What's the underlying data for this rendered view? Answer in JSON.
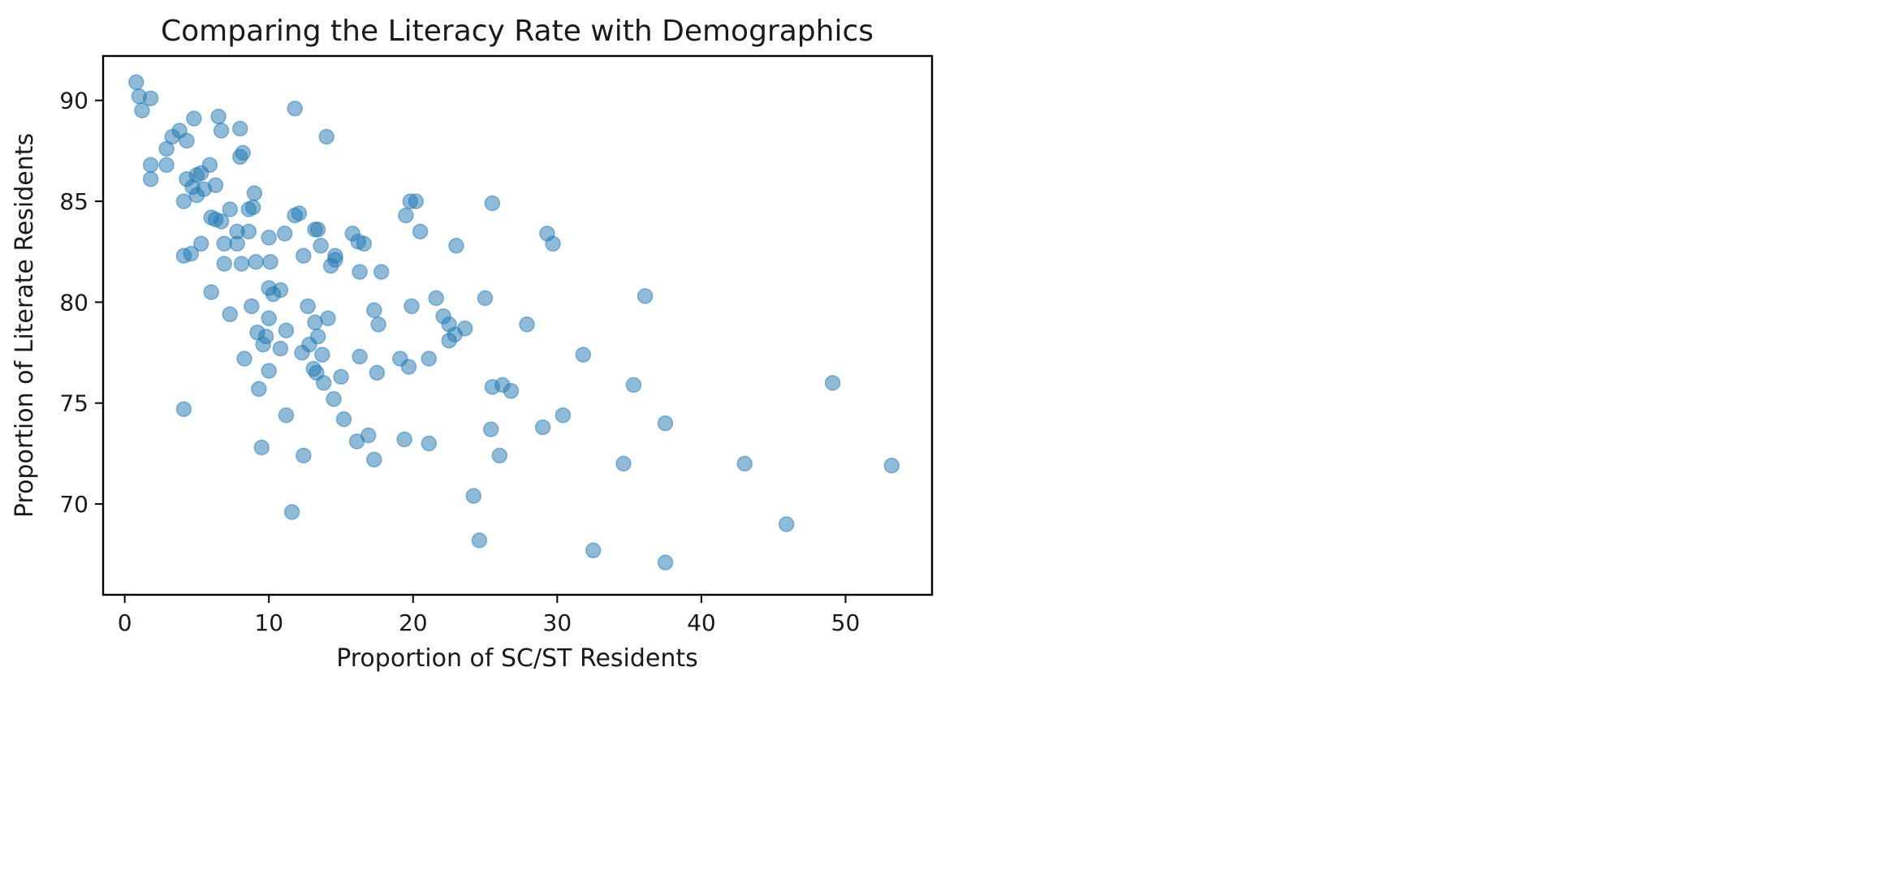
{
  "chart_data": {
    "type": "scatter",
    "title": "Comparing the Literacy Rate with Demographics",
    "xlabel": "Proportion of SC/ST Residents",
    "ylabel": "Proportion of Literate Residents",
    "xlim": [
      -1.5,
      56
    ],
    "ylim": [
      65.5,
      92.2
    ],
    "xticks": [
      0,
      10,
      20,
      30,
      40,
      50
    ],
    "yticks": [
      70,
      75,
      80,
      85,
      90
    ],
    "grid": false,
    "marker_color": "#1f77b4",
    "marker_alpha": 0.5,
    "points": [
      [
        0.8,
        90.9
      ],
      [
        1.0,
        90.2
      ],
      [
        1.8,
        90.1
      ],
      [
        1.2,
        89.5
      ],
      [
        4.8,
        89.1
      ],
      [
        6.5,
        89.2
      ],
      [
        6.7,
        88.5
      ],
      [
        8.0,
        88.6
      ],
      [
        11.8,
        89.6
      ],
      [
        14.0,
        88.2
      ],
      [
        3.8,
        88.5
      ],
      [
        3.3,
        88.2
      ],
      [
        4.3,
        88.0
      ],
      [
        2.9,
        87.6
      ],
      [
        8.2,
        87.4
      ],
      [
        8.0,
        87.2
      ],
      [
        1.8,
        86.8
      ],
      [
        2.9,
        86.8
      ],
      [
        5.9,
        86.8
      ],
      [
        5.3,
        86.4
      ],
      [
        5.0,
        86.3
      ],
      [
        1.8,
        86.1
      ],
      [
        4.3,
        86.1
      ],
      [
        4.7,
        85.7
      ],
      [
        5.5,
        85.6
      ],
      [
        6.3,
        85.8
      ],
      [
        9.0,
        85.4
      ],
      [
        5.0,
        85.3
      ],
      [
        4.1,
        85.0
      ],
      [
        19.8,
        85.0
      ],
      [
        20.2,
        85.0
      ],
      [
        25.5,
        84.9
      ],
      [
        7.3,
        84.6
      ],
      [
        8.6,
        84.6
      ],
      [
        8.9,
        84.7
      ],
      [
        11.8,
        84.3
      ],
      [
        12.1,
        84.4
      ],
      [
        19.5,
        84.3
      ],
      [
        6.0,
        84.2
      ],
      [
        6.3,
        84.1
      ],
      [
        6.7,
        84.0
      ],
      [
        7.8,
        83.5
      ],
      [
        8.6,
        83.5
      ],
      [
        10.0,
        83.2
      ],
      [
        11.1,
        83.4
      ],
      [
        13.2,
        83.6
      ],
      [
        13.4,
        83.6
      ],
      [
        15.8,
        83.4
      ],
      [
        20.5,
        83.5
      ],
      [
        29.3,
        83.4
      ],
      [
        5.3,
        82.9
      ],
      [
        6.9,
        82.9
      ],
      [
        7.8,
        82.9
      ],
      [
        13.6,
        82.8
      ],
      [
        16.2,
        83.0
      ],
      [
        16.6,
        82.9
      ],
      [
        23.0,
        82.8
      ],
      [
        29.7,
        82.9
      ],
      [
        4.1,
        82.3
      ],
      [
        4.6,
        82.4
      ],
      [
        9.1,
        82.0
      ],
      [
        10.1,
        82.0
      ],
      [
        12.4,
        82.3
      ],
      [
        14.6,
        82.3
      ],
      [
        14.6,
        82.1
      ],
      [
        14.3,
        81.8
      ],
      [
        6.9,
        81.9
      ],
      [
        8.1,
        81.9
      ],
      [
        16.3,
        81.5
      ],
      [
        17.8,
        81.5
      ],
      [
        6.0,
        80.5
      ],
      [
        10.0,
        80.7
      ],
      [
        10.3,
        80.4
      ],
      [
        10.8,
        80.6
      ],
      [
        21.6,
        80.2
      ],
      [
        25.0,
        80.2
      ],
      [
        36.1,
        80.3
      ],
      [
        8.8,
        79.8
      ],
      [
        12.7,
        79.8
      ],
      [
        17.3,
        79.6
      ],
      [
        19.9,
        79.8
      ],
      [
        7.3,
        79.4
      ],
      [
        10.0,
        79.2
      ],
      [
        13.2,
        79.0
      ],
      [
        14.1,
        79.2
      ],
      [
        17.6,
        78.9
      ],
      [
        22.1,
        79.3
      ],
      [
        22.5,
        78.9
      ],
      [
        27.9,
        78.9
      ],
      [
        9.2,
        78.5
      ],
      [
        9.8,
        78.3
      ],
      [
        11.2,
        78.6
      ],
      [
        13.4,
        78.3
      ],
      [
        22.9,
        78.4
      ],
      [
        22.5,
        78.1
      ],
      [
        23.6,
        78.7
      ],
      [
        9.6,
        77.9
      ],
      [
        10.8,
        77.7
      ],
      [
        12.8,
        77.9
      ],
      [
        12.3,
        77.5
      ],
      [
        13.7,
        77.4
      ],
      [
        16.3,
        77.3
      ],
      [
        19.1,
        77.2
      ],
      [
        21.1,
        77.2
      ],
      [
        8.3,
        77.2
      ],
      [
        31.8,
        77.4
      ],
      [
        10.0,
        76.6
      ],
      [
        13.1,
        76.7
      ],
      [
        13.3,
        76.5
      ],
      [
        15.0,
        76.3
      ],
      [
        17.5,
        76.5
      ],
      [
        19.7,
        76.8
      ],
      [
        13.8,
        76.0
      ],
      [
        9.3,
        75.7
      ],
      [
        25.5,
        75.8
      ],
      [
        26.2,
        75.9
      ],
      [
        26.8,
        75.6
      ],
      [
        35.3,
        75.9
      ],
      [
        49.1,
        76.0
      ],
      [
        14.5,
        75.2
      ],
      [
        4.1,
        74.7
      ],
      [
        11.2,
        74.4
      ],
      [
        15.2,
        74.2
      ],
      [
        30.4,
        74.4
      ],
      [
        25.4,
        73.7
      ],
      [
        29.0,
        73.8
      ],
      [
        37.5,
        74.0
      ],
      [
        16.9,
        73.4
      ],
      [
        16.1,
        73.1
      ],
      [
        19.4,
        73.2
      ],
      [
        21.1,
        73.0
      ],
      [
        9.5,
        72.8
      ],
      [
        12.4,
        72.4
      ],
      [
        17.3,
        72.2
      ],
      [
        26.0,
        72.4
      ],
      [
        34.6,
        72.0
      ],
      [
        43.0,
        72.0
      ],
      [
        53.2,
        71.9
      ],
      [
        24.2,
        70.4
      ],
      [
        11.6,
        69.6
      ],
      [
        45.9,
        69.0
      ],
      [
        24.6,
        68.2
      ],
      [
        32.5,
        67.7
      ],
      [
        37.5,
        67.1
      ]
    ]
  }
}
